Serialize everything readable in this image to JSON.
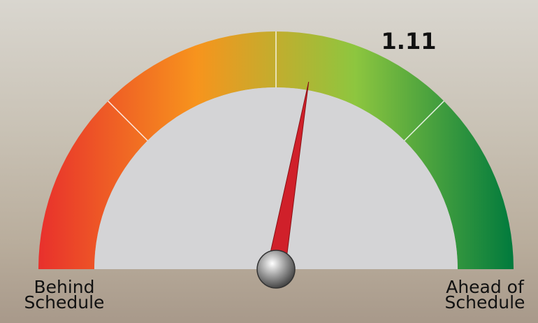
{
  "chart_data": {
    "type": "gauge",
    "value": 1.11,
    "range": [
      0,
      2
    ],
    "ticks": [
      0.5,
      1,
      1.5
    ],
    "min_label": "Behind Schedule",
    "max_label": "Ahead of Schedule",
    "colors": [
      "#e8302c",
      "#f7941d",
      "#8dc63f",
      "#007a3d"
    ],
    "needle_color": "#d0202a"
  }
}
